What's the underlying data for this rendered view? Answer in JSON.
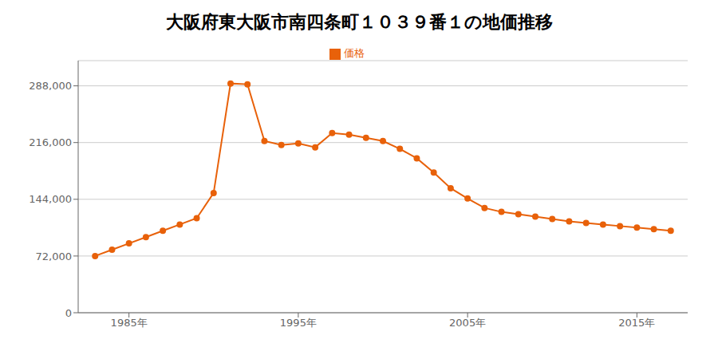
{
  "chart_data": {
    "type": "line",
    "title": "大阪府東大阪市南四条町１０３９番１の地価推移",
    "x": [
      1983,
      1984,
      1985,
      1986,
      1987,
      1988,
      1989,
      1990,
      1991,
      1992,
      1993,
      1994,
      1995,
      1996,
      1997,
      1998,
      1999,
      2000,
      2001,
      2002,
      2003,
      2004,
      2005,
      2006,
      2007,
      2008,
      2009,
      2010,
      2011,
      2012,
      2013,
      2014,
      2015,
      2016,
      2017
    ],
    "series": [
      {
        "name": "価格",
        "color": "#e8610a",
        "marker": "circle",
        "values": [
          72000,
          80000,
          88000,
          96000,
          104000,
          112000,
          120000,
          152000,
          291000,
          290000,
          218000,
          213000,
          215000,
          210000,
          228000,
          226000,
          222000,
          218000,
          208000,
          196000,
          178000,
          158000,
          145000,
          133000,
          128000,
          125000,
          122000,
          119000,
          116000,
          114000,
          112000,
          110000,
          108000,
          106000,
          104000
        ]
      }
    ],
    "xlim": [
      1982,
      2018
    ],
    "xticks": [
      {
        "value": 1985,
        "label": "1985年"
      },
      {
        "value": 1995,
        "label": "1995年"
      },
      {
        "value": 2005,
        "label": "2005年"
      },
      {
        "value": 2015,
        "label": "2015年"
      }
    ],
    "ylim": [
      0,
      320000
    ],
    "yticks": [
      0,
      {
        "value": 72000,
        "label": "72,000"
      },
      {
        "value": 144000,
        "label": "144,000"
      },
      {
        "value": 216000,
        "label": "216,000"
      },
      {
        "value": 288000,
        "label": "288,000"
      }
    ],
    "grid": true,
    "legend": "top"
  }
}
